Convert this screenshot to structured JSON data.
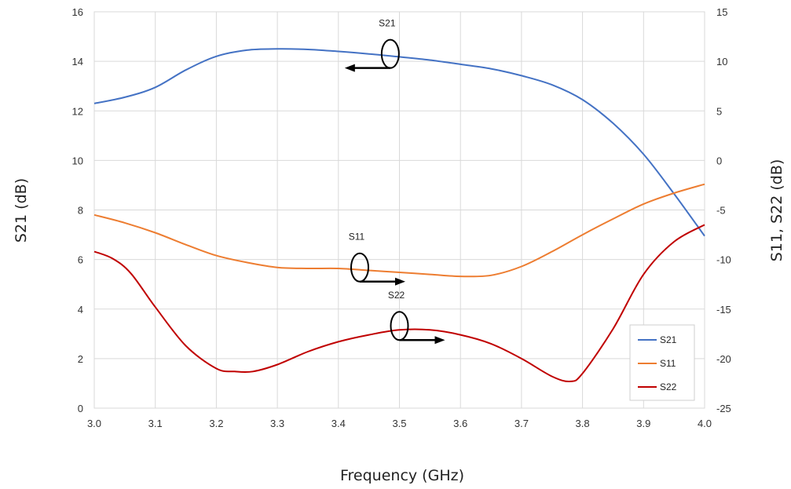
{
  "chart_data": {
    "type": "line",
    "xlabel": "Frequency (GHz)",
    "ylabel": "S21 (dB)",
    "y2label": "S11, S22 (dB)",
    "xlim": [
      3.0,
      4.0
    ],
    "ylim": [
      0,
      16
    ],
    "y2lim": [
      -25,
      15
    ],
    "xticks": [
      "3.0",
      "3.1",
      "3.2",
      "3.3",
      "3.4",
      "3.5",
      "3.6",
      "3.7",
      "3.8",
      "3.9",
      "4.0"
    ],
    "yticks": [
      "0",
      "2",
      "4",
      "6",
      "8",
      "10",
      "12",
      "14",
      "16"
    ],
    "y2ticks": [
      "-25",
      "-20",
      "-15",
      "-10",
      "-5",
      "0",
      "5",
      "10",
      "15"
    ],
    "grid": true,
    "legend": "bottom-right",
    "series": [
      {
        "name": "S21",
        "axis": "left",
        "color": "#4472C4",
        "x": [
          3.0,
          3.05,
          3.1,
          3.15,
          3.2,
          3.25,
          3.3,
          3.35,
          3.4,
          3.45,
          3.5,
          3.55,
          3.6,
          3.65,
          3.7,
          3.75,
          3.8,
          3.85,
          3.9,
          3.95,
          4.0
        ],
        "y": [
          12.3,
          12.55,
          12.95,
          13.65,
          14.2,
          14.45,
          14.5,
          14.48,
          14.4,
          14.3,
          14.18,
          14.05,
          13.88,
          13.7,
          13.42,
          13.05,
          12.45,
          11.5,
          10.25,
          8.65,
          6.95
        ]
      },
      {
        "name": "S11",
        "axis": "right",
        "color": "#ED7D31",
        "x": [
          3.0,
          3.05,
          3.1,
          3.15,
          3.2,
          3.25,
          3.3,
          3.35,
          3.4,
          3.45,
          3.5,
          3.55,
          3.6,
          3.65,
          3.7,
          3.75,
          3.8,
          3.85,
          3.9,
          3.95,
          4.0
        ],
        "y": [
          -5.5,
          -6.3,
          -7.3,
          -8.5,
          -9.6,
          -10.3,
          -10.8,
          -10.9,
          -10.9,
          -11.1,
          -11.3,
          -11.5,
          -11.7,
          -11.6,
          -10.7,
          -9.2,
          -7.5,
          -5.9,
          -4.4,
          -3.3,
          -2.4
        ]
      },
      {
        "name": "S22",
        "axis": "right",
        "color": "#C00000",
        "x": [
          3.0,
          3.03,
          3.06,
          3.1,
          3.15,
          3.2,
          3.23,
          3.26,
          3.3,
          3.35,
          3.4,
          3.45,
          3.5,
          3.55,
          3.6,
          3.65,
          3.7,
          3.75,
          3.78,
          3.8,
          3.85,
          3.9,
          3.95,
          4.0
        ],
        "y": [
          -9.2,
          -9.9,
          -11.4,
          -14.8,
          -18.7,
          -21.0,
          -21.3,
          -21.3,
          -20.6,
          -19.3,
          -18.3,
          -17.6,
          -17.1,
          -17.1,
          -17.6,
          -18.5,
          -20.0,
          -21.8,
          -22.3,
          -21.5,
          -17.0,
          -11.5,
          -8.2,
          -6.5
        ]
      }
    ],
    "annotations": [
      {
        "text": "S21",
        "x": 3.485,
        "y": 14.3,
        "axis": "left",
        "arrow": "left"
      },
      {
        "text": "S11",
        "x": 3.435,
        "y": -10.8,
        "axis": "right",
        "arrow": "right"
      },
      {
        "text": "S22",
        "x": 3.5,
        "y": -16.7,
        "axis": "right",
        "arrow": "right"
      }
    ]
  }
}
